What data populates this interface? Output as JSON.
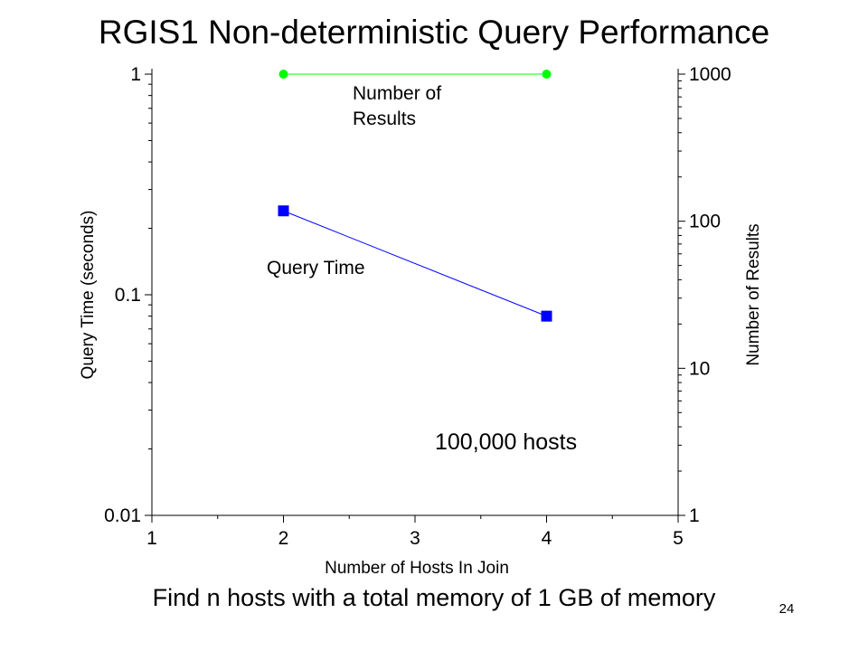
{
  "slide": {
    "title": "RGIS1 Non-deterministic Query Performance",
    "caption": "Find n hosts with a total memory of 1 GB of memory",
    "page_number": "24"
  },
  "chart_data": {
    "type": "line",
    "title": "RGIS1 Non-deterministic Query Performance",
    "xlabel": "Number of Hosts In Join",
    "ylabel_left": "Query Time (seconds)",
    "ylabel_right": "Number of Results",
    "xlim": [
      1,
      5
    ],
    "x_ticks": [
      "1",
      "2",
      "3",
      "4",
      "5"
    ],
    "y_left_scale": "log",
    "y_left_lim": [
      0.01,
      1
    ],
    "y_left_ticks": [
      "0.01",
      "0.1",
      "1"
    ],
    "y_right_scale": "log",
    "y_right_lim": [
      1,
      1000
    ],
    "y_right_ticks": [
      "1",
      "10",
      "100",
      "1000"
    ],
    "grid": false,
    "legend": "none",
    "annotation": "100,000 hosts",
    "series": [
      {
        "name": "Query Time",
        "axis": "left",
        "x": [
          2,
          4
        ],
        "y": [
          0.24,
          0.08
        ],
        "color": "#0000ff",
        "marker": "square"
      },
      {
        "name": "Number of Results",
        "axis": "right",
        "x": [
          2,
          4
        ],
        "y": [
          1000,
          1000
        ],
        "color": "#00ff00",
        "marker": "circle"
      }
    ]
  }
}
